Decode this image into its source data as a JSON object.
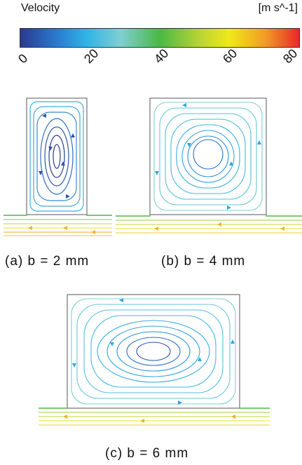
{
  "legend": {
    "title": "Velocity",
    "unit": "[m s^-1]",
    "ticks": [
      "0",
      "20",
      "40",
      "60",
      "80"
    ],
    "colors": [
      "#2b3990",
      "#2a7fd4",
      "#2fb5e6",
      "#7fcfd2",
      "#4ab845",
      "#b7d433",
      "#f0e81c",
      "#f29a23",
      "#e8282a"
    ]
  },
  "panels": [
    {
      "caption": "(a)  b  =  2  mm"
    },
    {
      "caption": "(b)  b  =  4  mm"
    },
    {
      "caption": "(c)  b  =  6  mm"
    }
  ]
}
